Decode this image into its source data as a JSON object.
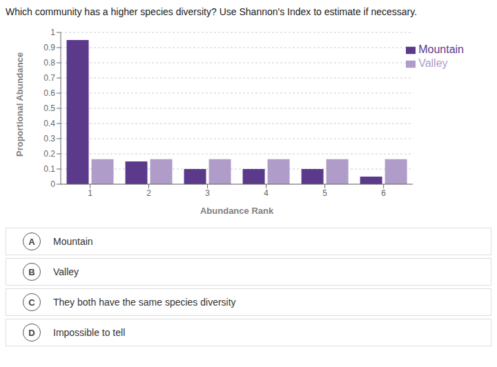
{
  "chart_data": {
    "type": "bar",
    "title": "Which community has a higher species diversity? Use Shannon's Index to estimate if necessary.",
    "x_label": "Abundance Rank",
    "y_label": "Proportional Abundance",
    "categories": [
      "1",
      "2",
      "3",
      "4",
      "5",
      "6"
    ],
    "series": [
      {
        "name": "Mountain",
        "color": "#5b3a8c",
        "values": [
          0.95,
          0.15,
          0.1,
          0.1,
          0.1,
          0.05
        ]
      },
      {
        "name": "Valley",
        "color": "#b09cc8",
        "values": [
          0.165,
          0.165,
          0.165,
          0.165,
          0.165,
          0.165
        ]
      }
    ],
    "ylim": [
      0,
      1.0
    ],
    "yticks": [
      0,
      0.1,
      0.2,
      0.3,
      0.4,
      0.5,
      0.6,
      0.7,
      0.8,
      0.9,
      1
    ],
    "grid": true,
    "legend": "upper right",
    "annotations": [
      {
        "label": "A",
        "text": "Mountain"
      },
      {
        "label": "B",
        "text": "Valley"
      },
      {
        "label": "C",
        "text": "They both have the same species diversity"
      },
      {
        "label": "D",
        "text": "Impossible to tell"
      }
    ]
  }
}
